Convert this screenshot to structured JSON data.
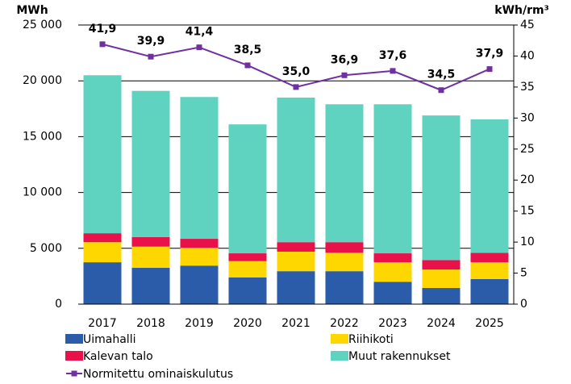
{
  "chart_data": {
    "type": "bar",
    "stacked": true,
    "grid": true,
    "ylabel": "MWh",
    "y2label": "kWh/rm³",
    "categories": [
      "2017",
      "2018",
      "2019",
      "2020",
      "2021",
      "2022",
      "2023",
      "2024",
      "2025"
    ],
    "series": [
      {
        "name": "Uimahalli",
        "color": "#2a5caa",
        "values": [
          3750,
          3250,
          3450,
          2400,
          2950,
          2950,
          2000,
          1450,
          2250
        ]
      },
      {
        "name": "Riihikoti",
        "color": "#ffd700",
        "values": [
          1800,
          1900,
          1600,
          1450,
          1750,
          1650,
          1750,
          1650,
          1500
        ]
      },
      {
        "name": "Kalevan talo",
        "color": "#e8114a",
        "values": [
          800,
          850,
          800,
          700,
          850,
          950,
          800,
          850,
          850
        ]
      },
      {
        "name": "Muut rakennukset",
        "color": "#5fd3c0",
        "values": [
          14150,
          13100,
          12700,
          11550,
          12950,
          12350,
          13350,
          12950,
          11950
        ]
      },
      {
        "name": "Normitettu ominaiskulutus",
        "type": "line",
        "axis": "y2",
        "color": "#7030a0",
        "values": [
          41.9,
          39.9,
          41.4,
          38.5,
          35.0,
          36.9,
          37.6,
          34.5,
          37.9
        ],
        "value_labels": [
          "41,9",
          "39,9",
          "41,4",
          "38,5",
          "35,0",
          "36,9",
          "37,6",
          "34,5",
          "37,9"
        ]
      }
    ],
    "ylim": [
      0,
      25000
    ],
    "yticks": [
      0,
      {
        "value": 5000,
        "label": "5 000"
      },
      {
        "value": 10000,
        "label": "10 000"
      },
      {
        "value": 15000,
        "label": "15 000"
      },
      {
        "value": 20000,
        "label": "20 000"
      },
      {
        "value": 25000,
        "label": "25 000"
      }
    ],
    "y2lim": [
      0,
      45
    ],
    "y2ticks": [
      0,
      5,
      10,
      15,
      20,
      25,
      30,
      35,
      40,
      45
    ]
  }
}
